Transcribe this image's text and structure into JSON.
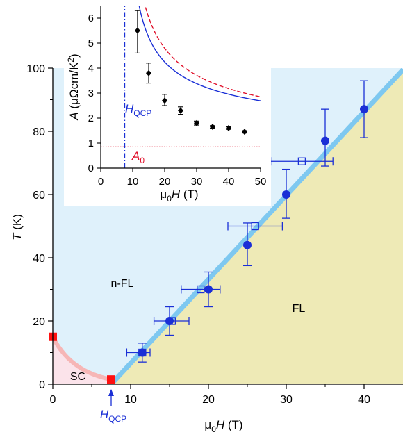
{
  "chart_data": {
    "type": "scatter",
    "main": {
      "xlabel": {
        "prefix": "μ",
        "sub": "0",
        "italic": "H",
        "suffix": " (T)"
      },
      "ylabel": {
        "italic": "T",
        "suffix": " (K)"
      },
      "xlim": [
        0,
        45
      ],
      "ylim": [
        0,
        100
      ],
      "xticks": [
        0,
        10,
        20,
        30,
        40
      ],
      "yticks": [
        0,
        20,
        40,
        60,
        80,
        100
      ],
      "regions": {
        "nfl_label": "n-FL",
        "fl_label": "FL",
        "sc_label": "SC",
        "colors": {
          "nfl": "#dff1fb",
          "fl": "#eeeab6",
          "sc": "#fbe3ea"
        }
      },
      "phase_boundary_line": {
        "from": [
          7.5,
          0
        ],
        "to": [
          45,
          99.5
        ],
        "color": "#7ec8f0"
      },
      "sc_dome": {
        "from": [
          0,
          15
        ],
        "to": [
          7.5,
          1.5
        ],
        "color": "#f6b6b6"
      },
      "sc_markers": [
        {
          "x": 0,
          "y": 15
        },
        {
          "x": 7.5,
          "y": 1.5
        }
      ],
      "hqcp_annotation": {
        "x": 7.5,
        "label_main": "H",
        "label_sub": "QCP",
        "color": "#1a2fd6"
      },
      "filled_circles": [
        {
          "x": 11.5,
          "y": 10,
          "yerr": [
            7,
            13
          ]
        },
        {
          "x": 15,
          "y": 20,
          "yerr": [
            15.5,
            24.5
          ]
        },
        {
          "x": 20,
          "y": 30,
          "yerr": [
            24.5,
            35.5
          ]
        },
        {
          "x": 25,
          "y": 44,
          "yerr": [
            37.5,
            51
          ]
        },
        {
          "x": 30,
          "y": 60,
          "yerr": [
            52.5,
            68
          ]
        },
        {
          "x": 35,
          "y": 77,
          "yerr": [
            69,
            87
          ]
        },
        {
          "x": 40,
          "y": 87,
          "yerr": [
            78,
            96
          ]
        }
      ],
      "open_squares": [
        {
          "x": 11.5,
          "y": 10,
          "xerr": [
            9.5,
            12.5
          ]
        },
        {
          "x": 15.3,
          "y": 20,
          "xerr": [
            13,
            17.5
          ]
        },
        {
          "x": 19,
          "y": 30,
          "xerr": [
            16.5,
            21.5
          ]
        },
        {
          "x": 26,
          "y": 50,
          "xerr": [
            22.5,
            29.5
          ]
        },
        {
          "x": 32,
          "y": 70.5,
          "xerr": [
            28,
            36
          ]
        }
      ],
      "colors": {
        "points": "#1a2fd6"
      }
    },
    "inset": {
      "xlabel": {
        "prefix": "μ",
        "sub": "0",
        "italic": "H",
        "suffix": " (T)"
      },
      "ylabel": {
        "italic": "A",
        "text": " (μΩcm/K",
        "sup": "2",
        "end": ")"
      },
      "xlim": [
        0,
        50
      ],
      "ylim": [
        0,
        6.5
      ],
      "xticks": [
        0,
        10,
        20,
        30,
        40,
        50
      ],
      "yticks": [
        0,
        1,
        2,
        3,
        4,
        5,
        6
      ],
      "points": [
        {
          "x": 11.5,
          "y": 5.5,
          "yerr": [
            4.6,
            6.3
          ]
        },
        {
          "x": 15,
          "y": 3.8,
          "yerr": [
            3.4,
            4.2
          ]
        },
        {
          "x": 20,
          "y": 2.7,
          "yerr": [
            2.5,
            2.95
          ]
        },
        {
          "x": 25,
          "y": 2.3,
          "yerr": [
            2.15,
            2.45
          ]
        },
        {
          "x": 30,
          "y": 1.8,
          "yerr": [
            1.72,
            1.88
          ]
        },
        {
          "x": 35,
          "y": 1.65,
          "yerr": [
            1.6,
            1.7
          ]
        },
        {
          "x": 40,
          "y": 1.6,
          "yerr": [
            1.55,
            1.65
          ]
        },
        {
          "x": 45,
          "y": 1.45,
          "yerr": [
            1.4,
            1.5
          ]
        }
      ],
      "fit_blue": {
        "A0": 0.85,
        "C": 12,
        "Hc": 7.5,
        "color": "#1a2fd6"
      },
      "fit_red": {
        "A0": 0.55,
        "C": 15,
        "Hc": 7.5,
        "color": "#e0102a"
      },
      "A0_line": {
        "y": 0.85,
        "label_main": "A",
        "label_sub": "0",
        "color": "#e0102a"
      },
      "hqcp_line": {
        "x": 7.5,
        "label_main": "H",
        "label_sub": "QCP",
        "color": "#1a2fd6"
      }
    }
  }
}
